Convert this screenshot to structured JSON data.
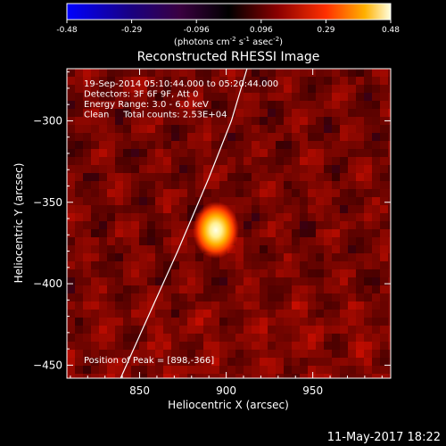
{
  "chart_data": {
    "type": "heatmap",
    "title": "Reconstructed RHESSI Image",
    "xlabel": "Heliocentric X (arcsec)",
    "ylabel": "Heliocentric Y (arcsec)",
    "xlim": [
      808,
      995
    ],
    "ylim": [
      -458,
      -268
    ],
    "xticks": [
      850,
      900,
      950
    ],
    "yticks": [
      -300,
      -350,
      -400,
      -450
    ],
    "colorbar": {
      "min": -0.48,
      "max": 0.48,
      "ticks": [
        "-0.48",
        "-0.29",
        "-0.096",
        "0.096",
        "0.29",
        "0.48"
      ],
      "unit_prefix": "(photons cm",
      "unit_exp1": "-2",
      "unit_mid1": " s",
      "unit_exp2": "-1",
      "unit_mid2": " asec",
      "unit_exp3": "-2",
      "unit_suffix": ")"
    },
    "annotations": [
      "19-Sep-2014 05:10:44.000 to 05:20:44.000",
      "Detectors: 3F 6F 9F, Att 0",
      "Energy Range: 3.0 - 6.0 keV",
      "Clean     Total counts: 2.53E+04"
    ],
    "peak_label": "Position of Peak = [898,-366]",
    "peak": {
      "x": 898,
      "y": -366,
      "value": 0.48
    },
    "limb_curve": [
      [
        839,
        -458
      ],
      [
        855,
        -420
      ],
      [
        872,
        -380
      ],
      [
        890,
        -335
      ],
      [
        903,
        -300
      ],
      [
        912,
        -268
      ]
    ],
    "grid": false,
    "colormap": "hot"
  },
  "footer": {
    "date": "11-May-2017 18:22"
  }
}
